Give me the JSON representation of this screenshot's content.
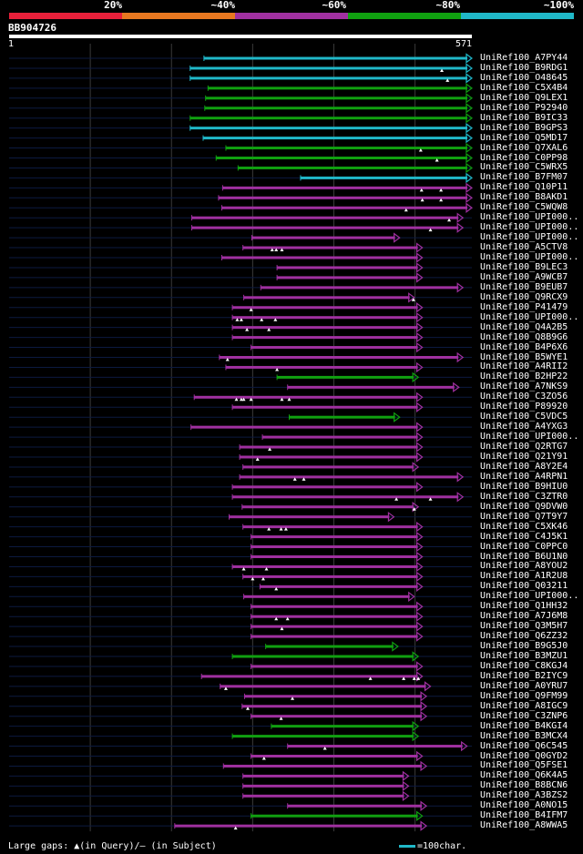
{
  "colors": {
    "background": "#000000",
    "text": "#ffffff",
    "identity_0_20": "#e8203a",
    "identity_20_40": "#e87820",
    "identity_40_60": "#a030a0",
    "identity_60_80": "#10a010",
    "identity_80_100": "#20b8c8",
    "gridline": "#3a3a3a",
    "baseline": "#0c1a40"
  },
  "scale": {
    "labels": [
      "20%",
      "~40%",
      "~60%",
      "~80%",
      "~100%"
    ]
  },
  "query": {
    "name": "BB904726",
    "start_label": "1",
    "end_label": "571"
  },
  "legend": {
    "gaps_text": "Large gaps: ▲(in Query)/– (in Subject)",
    "scale_text": "=100char."
  },
  "chart_data": {
    "type": "alignment",
    "x_range": [
      1,
      571
    ],
    "gridlines_at": [
      101,
      201,
      301,
      401,
      501
    ],
    "hits": [
      {
        "name": "UniRef100_A7PY44",
        "start": 241,
        "end": 571,
        "identity": "80-100",
        "marks": []
      },
      {
        "name": "UniRef100_B9RDG1",
        "start": 224,
        "end": 571,
        "identity": "80-100",
        "marks": [
          534
        ]
      },
      {
        "name": "UniRef100_O48645",
        "start": 224,
        "end": 571,
        "identity": "80-100",
        "marks": [
          541
        ]
      },
      {
        "name": "UniRef100_C5X4B4",
        "start": 246,
        "end": 571,
        "identity": "60-80",
        "marks": []
      },
      {
        "name": "UniRef100_Q9LEX1",
        "start": 243,
        "end": 571,
        "identity": "60-80",
        "marks": []
      },
      {
        "name": "UniRef100_P92940",
        "start": 242,
        "end": 571,
        "identity": "60-80",
        "marks": []
      },
      {
        "name": "UniRef100_B9IC33",
        "start": 224,
        "end": 571,
        "identity": "60-80",
        "marks": []
      },
      {
        "name": "UniRef100_B9GPS3",
        "start": 224,
        "end": 571,
        "identity": "80-100",
        "marks": []
      },
      {
        "name": "UniRef100_Q5MD17",
        "start": 240,
        "end": 571,
        "identity": "80-100",
        "marks": []
      },
      {
        "name": "UniRef100_Q7XAL6",
        "start": 268,
        "end": 571,
        "identity": "60-80",
        "marks": [
          508
        ]
      },
      {
        "name": "UniRef100_C0PP98",
        "start": 256,
        "end": 571,
        "identity": "60-80",
        "marks": [
          528
        ]
      },
      {
        "name": "UniRef100_C5WRX5",
        "start": 283,
        "end": 571,
        "identity": "60-80",
        "marks": []
      },
      {
        "name": "UniRef100_B7FM07",
        "start": 360,
        "end": 571,
        "identity": "80-100",
        "marks": []
      },
      {
        "name": "UniRef100_Q10P11",
        "start": 264,
        "end": 571,
        "identity": "40-60",
        "marks": [
          509,
          533
        ]
      },
      {
        "name": "UniRef100_B8AKD1",
        "start": 259,
        "end": 571,
        "identity": "40-60",
        "marks": [
          510,
          533
        ]
      },
      {
        "name": "UniRef100_C5WQW8",
        "start": 263,
        "end": 571,
        "identity": "40-60",
        "marks": [
          490
        ]
      },
      {
        "name": "UniRef100_UPI000..",
        "start": 226,
        "end": 560,
        "identity": "40-60",
        "marks": [
          543
        ]
      },
      {
        "name": "UniRef100_UPI000..",
        "start": 226,
        "end": 560,
        "identity": "40-60",
        "marks": [
          520
        ]
      },
      {
        "name": "UniRef100_UPI000..",
        "start": 300,
        "end": 482,
        "identity": "40-60",
        "marks": []
      },
      {
        "name": "UniRef100_A5CTV8",
        "start": 289,
        "end": 510,
        "identity": "40-60",
        "marks": [
          325,
          330,
          337
        ]
      },
      {
        "name": "UniRef100_UPI000..",
        "start": 263,
        "end": 510,
        "identity": "40-60",
        "marks": []
      },
      {
        "name": "UniRef100_B9LEC3",
        "start": 331,
        "end": 510,
        "identity": "40-60",
        "marks": []
      },
      {
        "name": "UniRef100_A9WCB7",
        "start": 331,
        "end": 510,
        "identity": "40-60",
        "marks": []
      },
      {
        "name": "UniRef100_B9EUB7",
        "start": 311,
        "end": 560,
        "identity": "40-60",
        "marks": []
      },
      {
        "name": "UniRef100_Q9RCX9",
        "start": 290,
        "end": 500,
        "identity": "40-60",
        "marks": [
          499
        ]
      },
      {
        "name": "UniRef100_P41479",
        "start": 276,
        "end": 510,
        "identity": "40-60",
        "marks": [
          299
        ]
      },
      {
        "name": "UniRef100_UPI000..",
        "start": 276,
        "end": 510,
        "identity": "40-60",
        "marks": [
          282,
          287,
          312,
          329
        ]
      },
      {
        "name": "UniRef100_Q4A2B5",
        "start": 276,
        "end": 510,
        "identity": "40-60",
        "marks": [
          294,
          321
        ]
      },
      {
        "name": "UniRef100_Q8B9G6",
        "start": 276,
        "end": 510,
        "identity": "40-60",
        "marks": []
      },
      {
        "name": "UniRef100_B4P6X6",
        "start": 299,
        "end": 510,
        "identity": "40-60",
        "marks": []
      },
      {
        "name": "UniRef100_B5WYE1",
        "start": 260,
        "end": 560,
        "identity": "40-60",
        "marks": [
          270
        ]
      },
      {
        "name": "UniRef100_A4RII2",
        "start": 268,
        "end": 510,
        "identity": "40-60",
        "marks": [
          331
        ]
      },
      {
        "name": "UniRef100_B2HP22",
        "start": 331,
        "end": 505,
        "identity": "60-80",
        "marks": []
      },
      {
        "name": "UniRef100_A7NKS9",
        "start": 344,
        "end": 555,
        "identity": "40-60",
        "marks": []
      },
      {
        "name": "UniRef100_C3ZO56",
        "start": 229,
        "end": 510,
        "identity": "40-60",
        "marks": [
          281,
          287,
          290,
          299,
          337,
          346
        ]
      },
      {
        "name": "UniRef100_P89920",
        "start": 276,
        "end": 510,
        "identity": "40-60",
        "marks": []
      },
      {
        "name": "UniRef100_C5VDC5",
        "start": 346,
        "end": 482,
        "identity": "60-80",
        "marks": []
      },
      {
        "name": "UniRef100_A4YXG3",
        "start": 225,
        "end": 510,
        "identity": "40-60",
        "marks": []
      },
      {
        "name": "UniRef100_UPI000..",
        "start": 313,
        "end": 510,
        "identity": "40-60",
        "marks": []
      },
      {
        "name": "UniRef100_Q2RTG7",
        "start": 285,
        "end": 510,
        "identity": "40-60",
        "marks": [
          322
        ]
      },
      {
        "name": "UniRef100_Q21Y91",
        "start": 285,
        "end": 510,
        "identity": "40-60",
        "marks": [
          307
        ]
      },
      {
        "name": "UniRef100_A8Y2E4",
        "start": 289,
        "end": 505,
        "identity": "40-60",
        "marks": []
      },
      {
        "name": "UniRef100_A4RPN1",
        "start": 285,
        "end": 560,
        "identity": "40-60",
        "marks": [
          353,
          364
        ]
      },
      {
        "name": "UniRef100_B9HIU0",
        "start": 276,
        "end": 510,
        "identity": "40-60",
        "marks": []
      },
      {
        "name": "UniRef100_C3ZTR0",
        "start": 276,
        "end": 560,
        "identity": "40-60",
        "marks": [
          478,
          520
        ]
      },
      {
        "name": "UniRef100_Q9DVW0",
        "start": 288,
        "end": 505,
        "identity": "40-60",
        "marks": [
          500
        ]
      },
      {
        "name": "UniRef100_Q7T9Y7",
        "start": 272,
        "end": 475,
        "identity": "40-60",
        "marks": []
      },
      {
        "name": "UniRef100_C5XK46",
        "start": 289,
        "end": 510,
        "identity": "40-60",
        "marks": [
          321,
          336,
          342
        ]
      },
      {
        "name": "UniRef100_C4J5K1",
        "start": 299,
        "end": 510,
        "identity": "40-60",
        "marks": []
      },
      {
        "name": "UniRef100_C0PPC0",
        "start": 299,
        "end": 510,
        "identity": "40-60",
        "marks": []
      },
      {
        "name": "UniRef100_B6U1N0",
        "start": 299,
        "end": 510,
        "identity": "40-60",
        "marks": []
      },
      {
        "name": "UniRef100_A8YOU2",
        "start": 276,
        "end": 510,
        "identity": "40-60",
        "marks": [
          290,
          318
        ]
      },
      {
        "name": "UniRef100_A1R2U8",
        "start": 289,
        "end": 510,
        "identity": "40-60",
        "marks": [
          301,
          314
        ]
      },
      {
        "name": "UniRef100_Q03211",
        "start": 310,
        "end": 510,
        "identity": "40-60",
        "marks": [
          330
        ]
      },
      {
        "name": "UniRef100_UPI000..",
        "start": 290,
        "end": 500,
        "identity": "40-60",
        "marks": []
      },
      {
        "name": "UniRef100_Q1HH32",
        "start": 299,
        "end": 510,
        "identity": "40-60",
        "marks": []
      },
      {
        "name": "UniRef100_A7J6M8",
        "start": 299,
        "end": 510,
        "identity": "40-60",
        "marks": [
          330,
          344
        ]
      },
      {
        "name": "UniRef100_Q3M5H7",
        "start": 299,
        "end": 510,
        "identity": "40-60",
        "marks": [
          337
        ]
      },
      {
        "name": "UniRef100_Q6ZZ32",
        "start": 299,
        "end": 510,
        "identity": "40-60",
        "marks": []
      },
      {
        "name": "UniRef100_B9G5J0",
        "start": 317,
        "end": 480,
        "identity": "60-80",
        "marks": []
      },
      {
        "name": "UniRef100_B3MZU1",
        "start": 276,
        "end": 505,
        "identity": "60-80",
        "marks": []
      },
      {
        "name": "UniRef100_C8KGJ4",
        "start": 299,
        "end": 510,
        "identity": "40-60",
        "marks": []
      },
      {
        "name": "UniRef100_B2IYC9",
        "start": 238,
        "end": 510,
        "identity": "40-60",
        "marks": [
          446,
          487,
          500,
          505
        ]
      },
      {
        "name": "UniRef100_A0YRU7",
        "start": 261,
        "end": 520,
        "identity": "40-60",
        "marks": [
          268
        ]
      },
      {
        "name": "UniRef100_Q9FM99",
        "start": 291,
        "end": 515,
        "identity": "40-60",
        "marks": [
          350
        ]
      },
      {
        "name": "UniRef100_A8IGC9",
        "start": 288,
        "end": 515,
        "identity": "40-60",
        "marks": [
          295
        ]
      },
      {
        "name": "UniRef100_C3ZNP6",
        "start": 299,
        "end": 515,
        "identity": "40-60",
        "marks": [
          336
        ]
      },
      {
        "name": "UniRef100_B4KGI4",
        "start": 324,
        "end": 505,
        "identity": "60-80",
        "marks": []
      },
      {
        "name": "UniRef100_B3MCX4",
        "start": 276,
        "end": 505,
        "identity": "60-80",
        "marks": []
      },
      {
        "name": "UniRef100_Q6C545",
        "start": 344,
        "end": 565,
        "identity": "40-60",
        "marks": [
          390
        ]
      },
      {
        "name": "UniRef100_Q0GYD2",
        "start": 299,
        "end": 510,
        "identity": "40-60",
        "marks": [
          315
        ]
      },
      {
        "name": "UniRef100_Q5FSE1",
        "start": 265,
        "end": 515,
        "identity": "40-60",
        "marks": []
      },
      {
        "name": "UniRef100_Q6K4A5",
        "start": 289,
        "end": 493,
        "identity": "40-60",
        "marks": []
      },
      {
        "name": "UniRef100_B8BCN6",
        "start": 289,
        "end": 493,
        "identity": "40-60",
        "marks": []
      },
      {
        "name": "UniRef100_A3BZS2",
        "start": 289,
        "end": 493,
        "identity": "40-60",
        "marks": []
      },
      {
        "name": "UniRef100_A0NO15",
        "start": 344,
        "end": 515,
        "identity": "40-60",
        "marks": []
      },
      {
        "name": "UniRef100_B4IFM7",
        "start": 299,
        "end": 510,
        "identity": "60-80",
        "marks": []
      },
      {
        "name": "UniRef100_A8WWA5",
        "start": 205,
        "end": 515,
        "identity": "40-60",
        "marks": [
          280
        ]
      }
    ]
  }
}
